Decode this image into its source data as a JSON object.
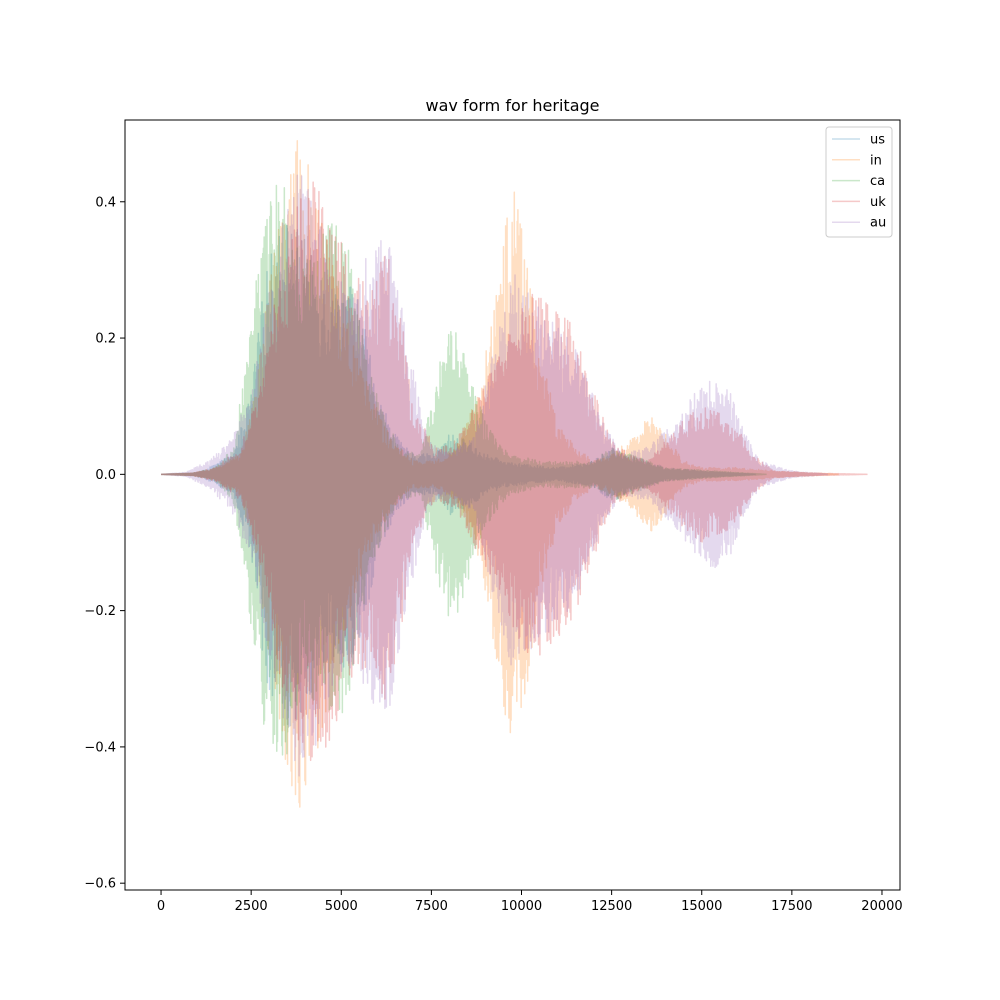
{
  "chart_data": {
    "type": "line",
    "title": "wav form for heritage",
    "xlabel": "",
    "ylabel": "",
    "xlim": [
      -1000,
      20500
    ],
    "ylim": [
      -0.61,
      0.52
    ],
    "xticks": [
      0,
      2500,
      5000,
      7500,
      10000,
      12500,
      15000,
      17500,
      20000
    ],
    "yticks": [
      -0.6,
      -0.4,
      -0.2,
      0.0,
      0.2,
      0.4
    ],
    "xtick_labels": [
      "0",
      "2500",
      "5000",
      "7500",
      "10000",
      "12500",
      "15000",
      "17500",
      "20000"
    ],
    "ytick_labels": [
      "−0.6",
      "−0.4",
      "−0.2",
      "0.0",
      "0.2",
      "0.4"
    ],
    "grid": false,
    "legend_position": "top-right",
    "series": [
      {
        "name": "us",
        "color": "#1f77b4",
        "alpha": 0.25,
        "length": 16500,
        "envelope": [
          [
            0,
            0
          ],
          [
            900,
            0.002
          ],
          [
            1200,
            0.006
          ],
          [
            2000,
            0.03
          ],
          [
            2500,
            0.12
          ],
          [
            2900,
            0.3
          ],
          [
            3400,
            0.38
          ],
          [
            3900,
            0.36
          ],
          [
            4300,
            0.3
          ],
          [
            4800,
            0.27
          ],
          [
            5200,
            0.29
          ],
          [
            5600,
            0.24
          ],
          [
            6000,
            0.12
          ],
          [
            6600,
            0.05
          ],
          [
            7000,
            0.03
          ],
          [
            7600,
            0.03
          ],
          [
            8000,
            0.06
          ],
          [
            8500,
            0.05
          ],
          [
            9000,
            0.03
          ],
          [
            9500,
            0.02
          ],
          [
            10000,
            0.015
          ],
          [
            11000,
            0.01
          ],
          [
            12000,
            0.02
          ],
          [
            12500,
            0.04
          ],
          [
            13000,
            0.03
          ],
          [
            13500,
            0.02
          ],
          [
            14000,
            0.01
          ],
          [
            15000,
            0.005
          ],
          [
            16500,
            0
          ]
        ]
      },
      {
        "name": "in",
        "color": "#ff7f0e",
        "alpha": 0.25,
        "length": 18800,
        "envelope": [
          [
            0,
            0
          ],
          [
            900,
            0.002
          ],
          [
            1500,
            0.01
          ],
          [
            2200,
            0.03
          ],
          [
            2600,
            0.12
          ],
          [
            3000,
            0.28
          ],
          [
            3500,
            0.45
          ],
          [
            3800,
            0.5
          ],
          [
            4200,
            0.44
          ],
          [
            4700,
            0.32
          ],
          [
            5200,
            0.22
          ],
          [
            5800,
            0.12
          ],
          [
            6400,
            0.05
          ],
          [
            7000,
            0.02
          ],
          [
            7600,
            0.02
          ],
          [
            8200,
            0.04
          ],
          [
            8800,
            0.12
          ],
          [
            9200,
            0.25
          ],
          [
            9600,
            0.38
          ],
          [
            9800,
            0.42
          ],
          [
            10100,
            0.34
          ],
          [
            10500,
            0.18
          ],
          [
            11000,
            0.08
          ],
          [
            11500,
            0.04
          ],
          [
            12000,
            0.02
          ],
          [
            12500,
            0.03
          ],
          [
            13000,
            0.05
          ],
          [
            13500,
            0.09
          ],
          [
            14000,
            0.06
          ],
          [
            14500,
            0.02
          ],
          [
            15000,
            0.01
          ],
          [
            16000,
            0.01
          ],
          [
            17000,
            0.005
          ],
          [
            18800,
            0
          ]
        ]
      },
      {
        "name": "ca",
        "color": "#2ca02c",
        "alpha": 0.25,
        "length": 16800,
        "envelope": [
          [
            0,
            0
          ],
          [
            900,
            0.002
          ],
          [
            1500,
            0.01
          ],
          [
            2000,
            0.04
          ],
          [
            2400,
            0.18
          ],
          [
            2800,
            0.36
          ],
          [
            3200,
            0.44
          ],
          [
            3500,
            0.42
          ],
          [
            3900,
            0.3
          ],
          [
            4300,
            0.34
          ],
          [
            4800,
            0.38
          ],
          [
            5200,
            0.33
          ],
          [
            5600,
            0.2
          ],
          [
            6100,
            0.1
          ],
          [
            6600,
            0.04
          ],
          [
            7200,
            0.03
          ],
          [
            7600,
            0.14
          ],
          [
            8000,
            0.22
          ],
          [
            8300,
            0.2
          ],
          [
            8700,
            0.12
          ],
          [
            9200,
            0.06
          ],
          [
            9700,
            0.03
          ],
          [
            10500,
            0.02
          ],
          [
            12000,
            0.02
          ],
          [
            12500,
            0.04
          ],
          [
            13000,
            0.03
          ],
          [
            14000,
            0.01
          ],
          [
            16800,
            0
          ]
        ]
      },
      {
        "name": "uk",
        "color": "#d62728",
        "alpha": 0.25,
        "length": 19600,
        "envelope": [
          [
            0,
            0
          ],
          [
            900,
            0.002
          ],
          [
            1500,
            0.01
          ],
          [
            2200,
            0.04
          ],
          [
            2800,
            0.14
          ],
          [
            3300,
            0.3
          ],
          [
            3800,
            0.4
          ],
          [
            4300,
            0.44
          ],
          [
            4800,
            0.38
          ],
          [
            5300,
            0.3
          ],
          [
            5800,
            0.28
          ],
          [
            6200,
            0.34
          ],
          [
            6600,
            0.26
          ],
          [
            7000,
            0.1
          ],
          [
            7600,
            0.04
          ],
          [
            8200,
            0.05
          ],
          [
            8800,
            0.12
          ],
          [
            9400,
            0.18
          ],
          [
            9900,
            0.24
          ],
          [
            10300,
            0.28
          ],
          [
            10800,
            0.25
          ],
          [
            11400,
            0.22
          ],
          [
            11900,
            0.14
          ],
          [
            12500,
            0.05
          ],
          [
            13000,
            0.03
          ],
          [
            13500,
            0.02
          ],
          [
            14000,
            0.05
          ],
          [
            14500,
            0.08
          ],
          [
            15000,
            0.1
          ],
          [
            15500,
            0.09
          ],
          [
            16000,
            0.07
          ],
          [
            16400,
            0.03
          ],
          [
            17000,
            0.005
          ],
          [
            18000,
            0.002
          ],
          [
            19600,
            0
          ]
        ]
      },
      {
        "name": "au",
        "color": "#9467bd",
        "alpha": 0.25,
        "length": 18500,
        "envelope": [
          [
            0,
            0
          ],
          [
            700,
            0.003
          ],
          [
            1300,
            0.02
          ],
          [
            1900,
            0.05
          ],
          [
            2500,
            0.12
          ],
          [
            3000,
            0.28
          ],
          [
            3500,
            0.4
          ],
          [
            3900,
            0.46
          ],
          [
            4400,
            0.38
          ],
          [
            4900,
            0.3
          ],
          [
            5400,
            0.28
          ],
          [
            6000,
            0.36
          ],
          [
            6400,
            0.34
          ],
          [
            6900,
            0.18
          ],
          [
            7400,
            0.05
          ],
          [
            8000,
            0.03
          ],
          [
            8700,
            0.06
          ],
          [
            9300,
            0.2
          ],
          [
            9800,
            0.3
          ],
          [
            10400,
            0.25
          ],
          [
            11000,
            0.22
          ],
          [
            11600,
            0.18
          ],
          [
            12200,
            0.08
          ],
          [
            12800,
            0.03
          ],
          [
            13500,
            0.04
          ],
          [
            14300,
            0.08
          ],
          [
            14800,
            0.12
          ],
          [
            15300,
            0.14
          ],
          [
            15800,
            0.12
          ],
          [
            16200,
            0.06
          ],
          [
            16600,
            0.02
          ],
          [
            17500,
            0.005
          ],
          [
            18500,
            0
          ]
        ]
      }
    ]
  }
}
